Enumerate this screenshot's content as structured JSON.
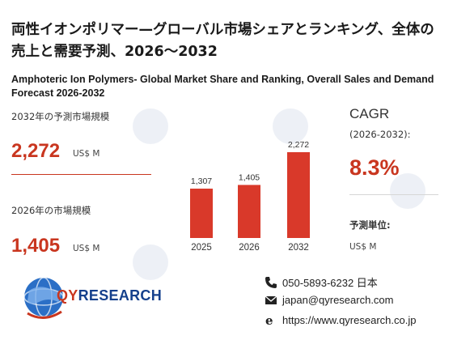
{
  "title_ja": "両性イオンポリマー—グローバル市場シェアとランキング、全体の売上と需要予測、2026～2032",
  "title_en": "Amphoteric Ion Polymers- Global Market Share and Ranking, Overall Sales and Demand Forecast 2026-2032",
  "kpi": {
    "label_2032": "2032年の予測市場規模",
    "value_2032": "2,272",
    "unit_2032": "US$ M",
    "label_2026": "2026年の市場規模",
    "value_2026": "1,405",
    "unit_2026": "US$ M"
  },
  "cagr": {
    "label": "CAGR",
    "period": "(2026-2032):",
    "value": "8.3%",
    "unit_label": "予測単位:",
    "unit_value": "US$ M"
  },
  "chart_data": {
    "type": "bar",
    "categories": [
      "2025",
      "2026",
      "2032"
    ],
    "values": [
      1307,
      1405,
      2272
    ],
    "value_labels": [
      "1,307",
      "1,405",
      "2,272"
    ],
    "ylim": [
      0,
      2272
    ],
    "bar_color": "#d9392a"
  },
  "contact": {
    "phone": "050-5893-6232 日本",
    "email": "japan@qyresearch.com",
    "website": "https://www.qyresearch.co.jp"
  },
  "logo": {
    "text_qy": "QY",
    "text_rest": "RESEARCH"
  },
  "colors": {
    "accent": "#c9361f",
    "brand_blue": "#15408c"
  }
}
